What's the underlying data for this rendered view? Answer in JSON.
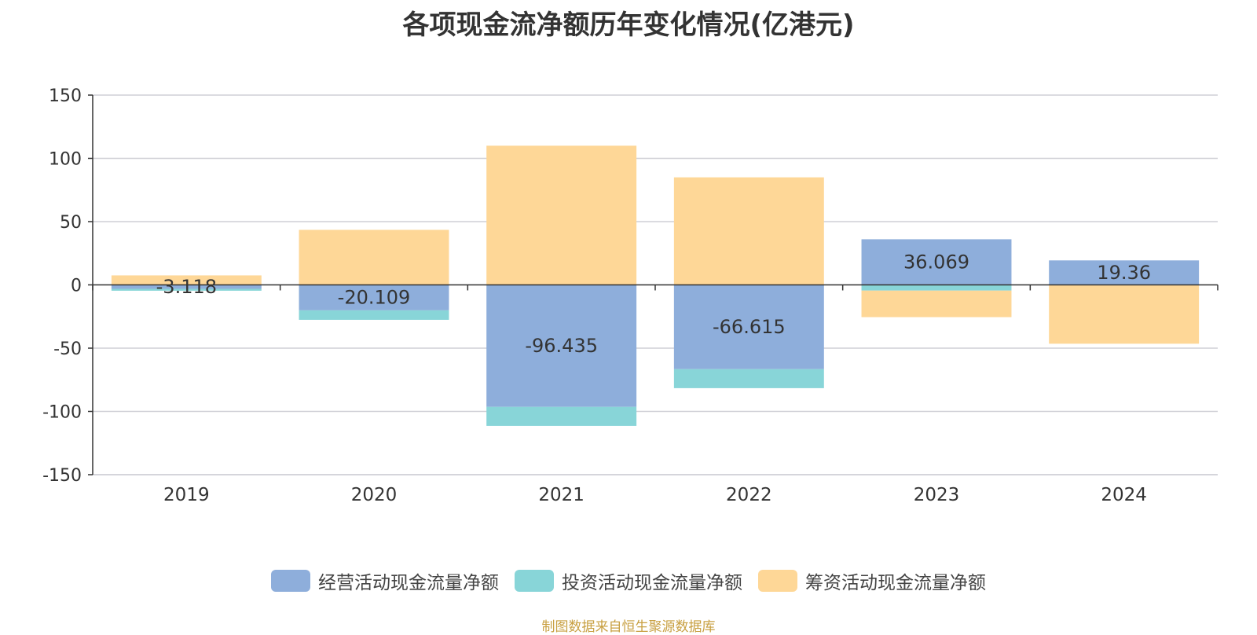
{
  "chart_data": {
    "type": "bar",
    "stacked": true,
    "title": "各项现金流净额历年变化情况(亿港元)",
    "categories": [
      "2019",
      "2020",
      "2021",
      "2022",
      "2023",
      "2024"
    ],
    "ylim": [
      -150,
      150
    ],
    "yticks": [
      "150",
      "100",
      "50",
      "0",
      "-50",
      "-100",
      "-150"
    ],
    "grid": true,
    "legend_position": "bottom",
    "series": [
      {
        "name": "经营活动现金流量净额",
        "color": "#8eaedb",
        "values": [
          -3.118,
          -20.109,
          -96.435,
          -66.615,
          36.069,
          19.36
        ],
        "labels": [
          "-3.118",
          "-20.109",
          "-96.435",
          "-66.615",
          "36.069",
          "19.36"
        ]
      },
      {
        "name": "投资活动现金流量净额",
        "color": "#88d5d8",
        "values": [
          -1.5,
          -7.5,
          -15,
          -15,
          -4.5,
          0
        ]
      },
      {
        "name": "筹资活动现金流量净额",
        "color": "#fed797",
        "values": [
          7.5,
          43.5,
          110,
          85,
          -21,
          -46.5
        ]
      }
    ],
    "source": "制图数据来自恒生聚源数据库"
  }
}
